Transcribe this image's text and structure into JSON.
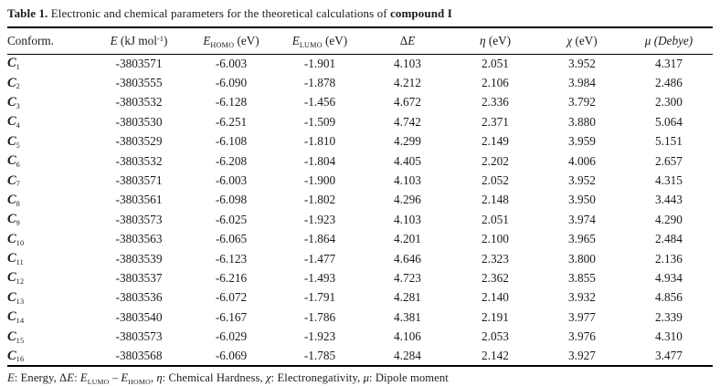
{
  "colors": {
    "background": "#ffffff",
    "text": "#1b1b1b",
    "rule": "#000000"
  },
  "title_segments": [
    {
      "t": "Table 1.",
      "f": "b"
    },
    {
      "t": " Electronic and chemical parameters for the theoretical calculations of "
    },
    {
      "t": "compound I",
      "f": "b"
    }
  ],
  "table": {
    "columns": [
      {
        "name": "conform",
        "align": "left",
        "segments": [
          {
            "t": "Conform."
          }
        ]
      },
      {
        "name": "energy",
        "align": "center",
        "segments": [
          {
            "t": "E",
            "f": "i"
          },
          {
            "t": " (kJ mol"
          },
          {
            "t": "-1",
            "f": "sup"
          },
          {
            "t": ")"
          }
        ]
      },
      {
        "name": "homo",
        "align": "center",
        "segments": [
          {
            "t": "E",
            "f": "i"
          },
          {
            "t": "HOMO",
            "f": "sub"
          },
          {
            "t": " (eV)"
          }
        ]
      },
      {
        "name": "lumo",
        "align": "center",
        "segments": [
          {
            "t": "E",
            "f": "i"
          },
          {
            "t": "LUMO",
            "f": "sub"
          },
          {
            "t": " (eV)"
          }
        ]
      },
      {
        "name": "delta-e",
        "align": "center",
        "segments": [
          {
            "t": "Δ"
          },
          {
            "t": "E",
            "f": "i"
          }
        ]
      },
      {
        "name": "eta",
        "align": "center",
        "segments": [
          {
            "t": "η",
            "f": "i"
          },
          {
            "t": " (eV)"
          }
        ]
      },
      {
        "name": "chi",
        "align": "center",
        "segments": [
          {
            "t": "χ",
            "f": "i"
          },
          {
            "t": " (eV)"
          }
        ]
      },
      {
        "name": "mu",
        "align": "center",
        "segments": [
          {
            "t": "μ (Debye)",
            "f": "i"
          }
        ]
      }
    ],
    "rows": [
      {
        "conformer": {
          "base": "C",
          "sub": "1"
        },
        "values": [
          "-3803571",
          "-6.003",
          "-1.901",
          "4.103",
          "2.051",
          "3.952",
          "4.317"
        ]
      },
      {
        "conformer": {
          "base": "C",
          "sub": "2"
        },
        "values": [
          "-3803555",
          "-6.090",
          "-1.878",
          "4.212",
          "2.106",
          "3.984",
          "2.486"
        ]
      },
      {
        "conformer": {
          "base": "C",
          "sub": "3"
        },
        "values": [
          "-3803532",
          "-6.128",
          "-1.456",
          "4.672",
          "2.336",
          "3.792",
          "2.300"
        ]
      },
      {
        "conformer": {
          "base": "C",
          "sub": "4"
        },
        "values": [
          "-3803530",
          "-6.251",
          "-1.509",
          "4.742",
          "2.371",
          "3.880",
          "5.064"
        ]
      },
      {
        "conformer": {
          "base": "C",
          "sub": "5"
        },
        "values": [
          "-3803529",
          "-6.108",
          "-1.810",
          "4.299",
          "2.149",
          "3.959",
          "5.151"
        ]
      },
      {
        "conformer": {
          "base": "C",
          "sub": "6"
        },
        "values": [
          "-3803532",
          "-6.208",
          "-1.804",
          "4.405",
          "2.202",
          "4.006",
          "2.657"
        ]
      },
      {
        "conformer": {
          "base": "C",
          "sub": "7"
        },
        "values": [
          "-3803571",
          "-6.003",
          "-1.900",
          "4.103",
          "2.052",
          "3.952",
          "4.315"
        ]
      },
      {
        "conformer": {
          "base": "C",
          "sub": "8"
        },
        "values": [
          "-3803561",
          "-6.098",
          "-1.802",
          "4.296",
          "2.148",
          "3.950",
          "3.443"
        ]
      },
      {
        "conformer": {
          "base": "C",
          "sub": "9"
        },
        "values": [
          "-3803573",
          "-6.025",
          "-1.923",
          "4.103",
          "2.051",
          "3.974",
          "4.290"
        ]
      },
      {
        "conformer": {
          "base": "C",
          "sub": "10"
        },
        "values": [
          "-3803563",
          "-6.065",
          "-1.864",
          "4.201",
          "2.100",
          "3.965",
          "2.484"
        ]
      },
      {
        "conformer": {
          "base": "C",
          "sub": "11"
        },
        "values": [
          "-3803539",
          "-6.123",
          "-1.477",
          "4.646",
          "2.323",
          "3.800",
          "2.136"
        ]
      },
      {
        "conformer": {
          "base": "C",
          "sub": "12"
        },
        "values": [
          "-3803537",
          "-6.216",
          "-1.493",
          "4.723",
          "2.362",
          "3.855",
          "4.934"
        ]
      },
      {
        "conformer": {
          "base": "C",
          "sub": "13"
        },
        "values": [
          "-3803536",
          "-6.072",
          "-1.791",
          "4.281",
          "2.140",
          "3.932",
          "4.856"
        ]
      },
      {
        "conformer": {
          "base": "C",
          "sub": "14"
        },
        "values": [
          "-3803540",
          "-6.167",
          "-1.786",
          "4.381",
          "2.191",
          "3.977",
          "2.339"
        ]
      },
      {
        "conformer": {
          "base": "C",
          "sub": "15"
        },
        "values": [
          "-3803573",
          "-6.029",
          "-1.923",
          "4.106",
          "2.053",
          "3.976",
          "4.310"
        ]
      },
      {
        "conformer": {
          "base": "C",
          "sub": "16"
        },
        "values": [
          "-3803568",
          "-6.069",
          "-1.785",
          "4.284",
          "2.142",
          "3.927",
          "3.477"
        ]
      }
    ]
  },
  "footnote_segments": [
    {
      "t": "E",
      "f": "i"
    },
    {
      "t": ": Energy, Δ"
    },
    {
      "t": "E",
      "f": "i"
    },
    {
      "t": ": "
    },
    {
      "t": "E",
      "f": "i"
    },
    {
      "t": "LUMO",
      "f": "sub"
    },
    {
      "t": " – "
    },
    {
      "t": "E",
      "f": "i"
    },
    {
      "t": "HOMO",
      "f": "sub"
    },
    {
      "t": ", "
    },
    {
      "t": "η",
      "f": "i"
    },
    {
      "t": ": Chemical Hardness, "
    },
    {
      "t": "χ",
      "f": "i"
    },
    {
      "t": ": Electronegativity, "
    },
    {
      "t": "μ",
      "f": "i"
    },
    {
      "t": ": Dipole moment"
    }
  ]
}
